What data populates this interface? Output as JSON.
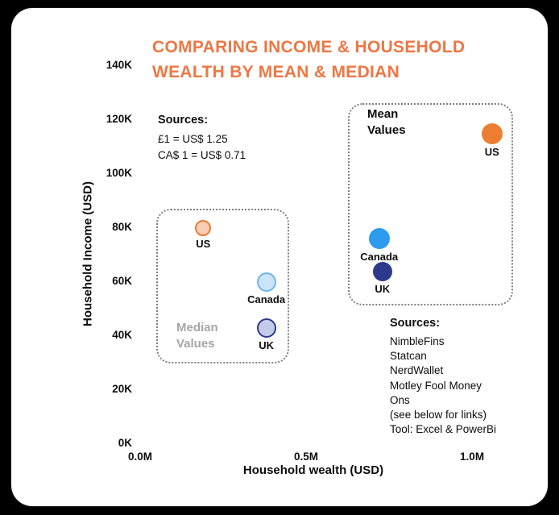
{
  "title": "COMPARING INCOME & HOUSEHOLD WEALTH BY MEAN & MEDIAN",
  "colors": {
    "background": "#000000",
    "card": "#FFFFFF",
    "title_orange": "#ED7744",
    "us_orange": "#ED7D31",
    "canada_blue": "#2D9CEF",
    "uk_navy": "#2D3A8C",
    "median_label_gray": "#A6A6A6",
    "group_box_border": "#7F7F7F"
  },
  "chart_data": {
    "type": "scatter",
    "title": "COMPARING INCOME & HOUSEHOLD WEALTH BY MEAN & MEDIAN",
    "xlabel": "Household wealth (USD)",
    "ylabel": "Household Income (USD)",
    "x_unit": "millions of USD",
    "y_unit": "thousands of USD",
    "xlim": [
      0,
      1.16
    ],
    "ylim": [
      0,
      140
    ],
    "grid": false,
    "legend_position": "annotated-groups",
    "x_ticks": [
      {
        "label": "0.0M",
        "value": 0
      },
      {
        "label": "0.5M",
        "value": 0.5
      },
      {
        "label": "1.0M",
        "value": 1.0
      }
    ],
    "y_ticks": [
      {
        "label": "0K",
        "value": 0
      },
      {
        "label": "20K",
        "value": 20
      },
      {
        "label": "40K",
        "value": 40
      },
      {
        "label": "60K",
        "value": 60
      },
      {
        "label": "80K",
        "value": 80
      },
      {
        "label": "100K",
        "value": 100
      },
      {
        "label": "120K",
        "value": 120
      },
      {
        "label": "140K",
        "value": 140
      }
    ],
    "series": [
      {
        "key": "median",
        "name": "Median Values",
        "points": [
          {
            "label": "US",
            "x": 0.19,
            "y": 80,
            "r": 10,
            "fill": "#F9CDB5",
            "stroke": "#ED7D31"
          },
          {
            "label": "Canada",
            "x": 0.38,
            "y": 60,
            "r": 12,
            "fill": "#CBE4F9",
            "stroke": "#6EB4EC"
          },
          {
            "label": "UK",
            "x": 0.38,
            "y": 43,
            "r": 12,
            "fill": "#C4CBE9",
            "stroke": "#2D3A8C"
          }
        ]
      },
      {
        "key": "mean",
        "name": "Mean Values",
        "points": [
          {
            "label": "US",
            "x": 1.06,
            "y": 115,
            "r": 13,
            "fill": "#ED7D31",
            "stroke": null
          },
          {
            "label": "Canada",
            "x": 0.72,
            "y": 76,
            "r": 13,
            "fill": "#2D9CEF",
            "stroke": null
          },
          {
            "label": "UK",
            "x": 0.73,
            "y": 64,
            "r": 12,
            "fill": "#2D3A8C",
            "stroke": null
          }
        ]
      }
    ]
  },
  "annotations": {
    "exchange_note": {
      "heading": "Sources:",
      "lines": [
        "£1 = US$ 1.25",
        "CA$ 1 = US$ 0.71"
      ]
    },
    "sources_note": {
      "heading": "Sources:",
      "lines": [
        "NimbleFins",
        "Statcan",
        "NerdWallet",
        "Motley Fool Money",
        "Ons",
        "(see below for links)",
        "Tool: Excel & PowerBi"
      ]
    },
    "median_group_label": "Median Values",
    "mean_group_label": "Mean Values"
  }
}
